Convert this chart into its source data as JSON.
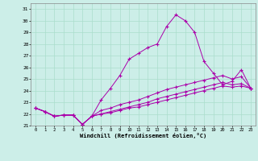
{
  "xlabel": "Windchill (Refroidissement éolien,°C)",
  "bg_color": "#cceee8",
  "grid_color": "#aaddcc",
  "line_color": "#aa00aa",
  "xlim": [
    -0.5,
    23.5
  ],
  "ylim": [
    21,
    31.5
  ],
  "yticks": [
    21,
    22,
    23,
    24,
    25,
    26,
    27,
    28,
    29,
    30,
    31
  ],
  "xticks": [
    0,
    1,
    2,
    3,
    4,
    5,
    6,
    7,
    8,
    9,
    10,
    11,
    12,
    13,
    14,
    15,
    16,
    17,
    18,
    19,
    20,
    21,
    22,
    23
  ],
  "series": [
    [
      22.5,
      22.2,
      21.8,
      21.9,
      21.9,
      21.1,
      21.8,
      23.2,
      24.2,
      25.3,
      26.7,
      27.2,
      27.7,
      28.0,
      29.5,
      30.5,
      30.0,
      29.0,
      26.5,
      25.5,
      24.5,
      24.8,
      25.8,
      24.2
    ],
    [
      22.5,
      22.2,
      21.8,
      21.9,
      21.9,
      21.1,
      21.8,
      22.3,
      22.5,
      22.8,
      23.0,
      23.2,
      23.5,
      23.8,
      24.1,
      24.3,
      24.5,
      24.7,
      24.9,
      25.1,
      25.3,
      25.0,
      25.2,
      24.2
    ],
    [
      22.5,
      22.2,
      21.8,
      21.9,
      21.9,
      21.1,
      21.8,
      22.0,
      22.2,
      22.4,
      22.6,
      22.8,
      23.0,
      23.3,
      23.5,
      23.7,
      23.9,
      24.1,
      24.3,
      24.5,
      24.7,
      24.5,
      24.6,
      24.2
    ],
    [
      22.5,
      22.2,
      21.8,
      21.9,
      21.9,
      21.1,
      21.8,
      22.0,
      22.1,
      22.3,
      22.5,
      22.6,
      22.8,
      23.0,
      23.2,
      23.4,
      23.6,
      23.8,
      24.0,
      24.2,
      24.4,
      24.3,
      24.4,
      24.2
    ]
  ]
}
